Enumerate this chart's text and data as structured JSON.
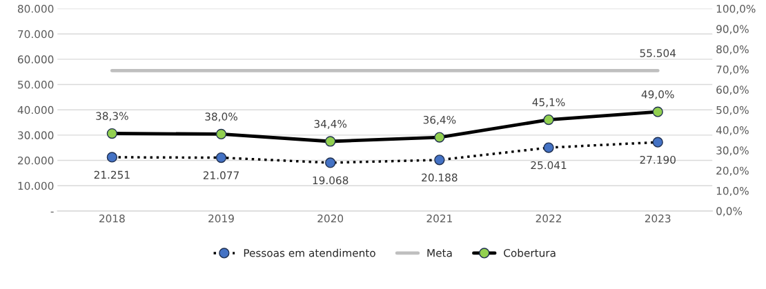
{
  "chart_data": {
    "type": "line",
    "categories": [
      "2018",
      "2019",
      "2020",
      "2021",
      "2022",
      "2023"
    ],
    "series": [
      {
        "name": "Pessoas em atendimento",
        "color": "#000000",
        "line_style": "dotted",
        "marker": "circle",
        "values": [
          21251,
          21077,
          19068,
          20188,
          25041,
          27190
        ],
        "value_labels": [
          "21.251",
          "21.077",
          "19.068",
          "20.188",
          "25.041",
          "27.190"
        ]
      },
      {
        "name": "Meta",
        "color": "#bfbfbf",
        "line_style": "solid",
        "marker": "none",
        "values": [
          55504,
          55504,
          55504,
          55504,
          55504,
          55504
        ],
        "value_labels": [
          null,
          null,
          null,
          null,
          null,
          "55.504"
        ]
      },
      {
        "name": "Cobertura",
        "color": "#000000",
        "line_style": "solid",
        "marker": "circle",
        "axis": "y2",
        "values": [
          38.3,
          38.0,
          34.4,
          36.4,
          45.1,
          49.0
        ],
        "value_labels": [
          "38,3%",
          "38,0%",
          "34,4%",
          "36,4%",
          "45,1%",
          "49,0%"
        ]
      }
    ],
    "ylim": [
      0,
      80000
    ],
    "yticks": [
      {
        "value": 0,
        "label": "-"
      },
      {
        "value": 10000,
        "label": "10.000"
      },
      {
        "value": 20000,
        "label": "20.000"
      },
      {
        "value": 30000,
        "label": "30.000"
      },
      {
        "value": 40000,
        "label": "40.000"
      },
      {
        "value": 50000,
        "label": "50.000"
      },
      {
        "value": 60000,
        "label": "60.000"
      },
      {
        "value": 70000,
        "label": "70.000"
      },
      {
        "value": 80000,
        "label": "80.000"
      }
    ],
    "y2lim": [
      0,
      100
    ],
    "y2ticks": [
      {
        "value": 0,
        "label": "0,0%"
      },
      {
        "value": 10,
        "label": "10,0%"
      },
      {
        "value": 20,
        "label": "20,0%"
      },
      {
        "value": 30,
        "label": "30,0%"
      },
      {
        "value": 40,
        "label": "40,0%"
      },
      {
        "value": 50,
        "label": "50,0%"
      },
      {
        "value": 60,
        "label": "60,0%"
      },
      {
        "value": 70,
        "label": "70,0%"
      },
      {
        "value": 80,
        "label": "80,0%"
      },
      {
        "value": 90,
        "label": "90,0%"
      },
      {
        "value": 100,
        "label": "100,0%"
      }
    ],
    "grid": "y",
    "legend": "bottom"
  }
}
